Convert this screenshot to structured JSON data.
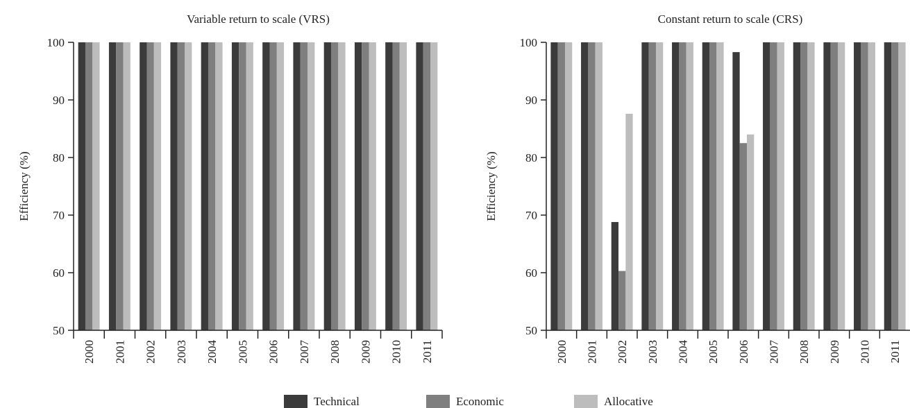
{
  "colors": {
    "Technical": "#3b3b3b",
    "Economic": "#7f7f7f",
    "Allocative": "#bdbdbd"
  },
  "legend": [
    "Technical",
    "Economic",
    "Allocative"
  ],
  "chart_data": [
    {
      "type": "bar",
      "title": "Variable return to scale (VRS)",
      "xlabel": "",
      "ylabel": "Efficiency (%)",
      "ylim": [
        50,
        100
      ],
      "yticks": [
        "50",
        "60",
        "70",
        "80",
        "90",
        "100"
      ],
      "grid": false,
      "legend_position": "bottom",
      "categories": [
        "2000",
        "2001",
        "2002",
        "2003",
        "2004",
        "2005",
        "2006",
        "2007",
        "2008",
        "2009",
        "2010",
        "2011"
      ],
      "series": [
        {
          "name": "Technical",
          "values": [
            100,
            100,
            100,
            100,
            100,
            100,
            100,
            100,
            100,
            100,
            100,
            100
          ]
        },
        {
          "name": "Economic",
          "values": [
            100,
            100,
            100,
            100,
            100,
            100,
            100,
            100,
            100,
            100,
            100,
            100
          ]
        },
        {
          "name": "Allocative",
          "values": [
            100,
            100,
            100,
            100,
            100,
            100,
            100,
            100,
            100,
            100,
            100,
            100
          ]
        }
      ]
    },
    {
      "type": "bar",
      "title": "Constant return to scale (CRS)",
      "xlabel": "",
      "ylabel": "Efficiency (%)",
      "ylim": [
        50,
        100
      ],
      "yticks": [
        "50",
        "60",
        "70",
        "80",
        "90",
        "100"
      ],
      "grid": false,
      "legend_position": "bottom",
      "categories": [
        "2000",
        "2001",
        "2002",
        "2003",
        "2004",
        "2005",
        "2006",
        "2007",
        "2008",
        "2009",
        "2010",
        "2011"
      ],
      "series": [
        {
          "name": "Technical",
          "values": [
            100,
            100,
            68.8,
            100,
            100,
            100,
            98.3,
            100,
            100,
            100,
            100,
            100
          ]
        },
        {
          "name": "Economic",
          "values": [
            100,
            100,
            60.3,
            100,
            100,
            100,
            82.5,
            100,
            100,
            100,
            100,
            100
          ]
        },
        {
          "name": "Allocative",
          "values": [
            100,
            100,
            87.6,
            100,
            100,
            100,
            84.0,
            100,
            100,
            100,
            100,
            100
          ]
        }
      ]
    }
  ]
}
